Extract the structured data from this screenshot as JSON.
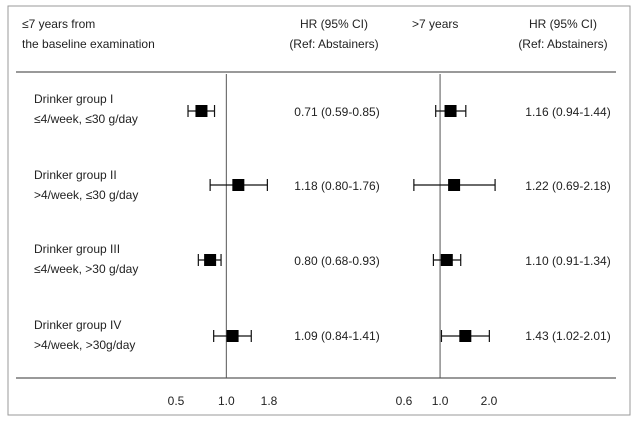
{
  "chart_data": {
    "type": "forest",
    "scale": "log",
    "panels": [
      {
        "header": [
          "≤7 years from",
          "the baseline examination"
        ],
        "ci_header": [
          "HR (95% CI)",
          "(Ref: Abstainers)"
        ],
        "ticks": [
          0.5,
          1.0,
          1.8
        ],
        "tick_labels": [
          "0.5",
          "1.0",
          "1.8"
        ],
        "reference": 1.0,
        "points": [
          {
            "hr": 0.71,
            "lo": 0.59,
            "hi": 0.85,
            "label": "0.71 (0.59-0.85)"
          },
          {
            "hr": 1.18,
            "lo": 0.8,
            "hi": 1.76,
            "label": "1.18 (0.80-1.76)"
          },
          {
            "hr": 0.8,
            "lo": 0.68,
            "hi": 0.93,
            "label": "0.80 (0.68-0.93)"
          },
          {
            "hr": 1.09,
            "lo": 0.84,
            "hi": 1.41,
            "label": "1.09 (0.84-1.41)"
          }
        ]
      },
      {
        "header": [
          ">7 years"
        ],
        "ci_header": [
          "HR (95% CI)",
          "(Ref: Abstainers)"
        ],
        "ticks": [
          0.6,
          1.0,
          2.0
        ],
        "tick_labels": [
          "0.6",
          "1.0",
          "2.0"
        ],
        "reference": 1.0,
        "points": [
          {
            "hr": 1.16,
            "lo": 0.94,
            "hi": 1.44,
            "label": "1.16 (0.94-1.44)"
          },
          {
            "hr": 1.22,
            "lo": 0.69,
            "hi": 2.18,
            "label": "1.22 (0.69-2.18)"
          },
          {
            "hr": 1.1,
            "lo": 0.91,
            "hi": 1.34,
            "label": "1.10 (0.91-1.34)"
          },
          {
            "hr": 1.43,
            "lo": 1.02,
            "hi": 2.01,
            "label": "1.43 (1.02-2.01)"
          }
        ]
      }
    ],
    "groups": [
      {
        "name": "Drinker group I",
        "detail": "≤4/week, ≤30 g/day"
      },
      {
        "name": "Drinker group II",
        "detail": ">4/week, ≤30 g/day"
      },
      {
        "name": "Drinker group III",
        "detail": "≤4/week, >30 g/day"
      },
      {
        "name": "Drinker group IV",
        "detail": ">4/week, >30g/day"
      }
    ]
  }
}
